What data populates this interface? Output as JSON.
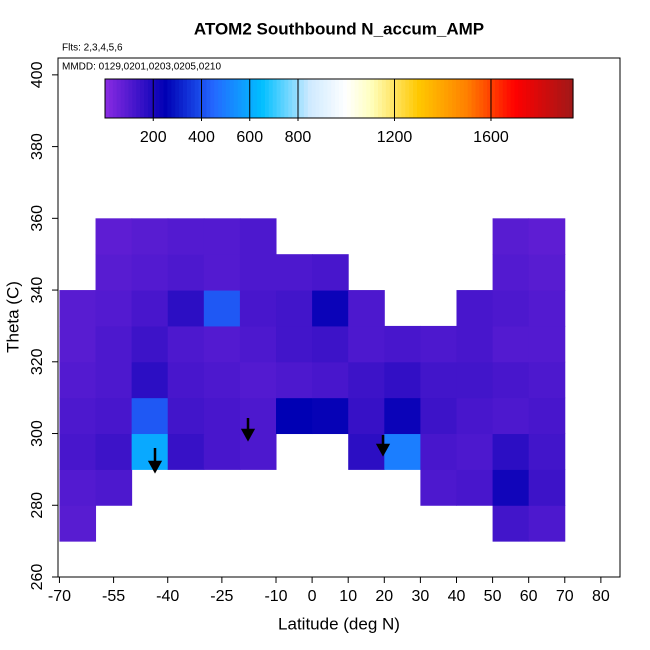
{
  "chart_data": {
    "type": "heatmap",
    "title": "ATOM2 Southbound N_accum_AMP",
    "annotations": [
      "Flts: 2,3,4,5,6",
      "MMDD: 0129,0201,0203,0205,0210"
    ],
    "xlabel": "Latitude (deg N)",
    "ylabel": "Theta (C)",
    "xlim": [
      -70.4,
      85.3
    ],
    "xticks": [
      -70,
      -55,
      -40,
      -25,
      -10,
      0,
      10,
      20,
      30,
      40,
      50,
      60,
      70,
      80
    ],
    "ylim": [
      260,
      404.7
    ],
    "yticks": [
      260,
      280,
      300,
      320,
      340,
      360,
      380,
      400
    ],
    "x_edges": [
      -70,
      -60,
      -50,
      -40,
      -30,
      -20,
      -10,
      0,
      10,
      20,
      30,
      40,
      50,
      60,
      70
    ],
    "y_edges": [
      270,
      280,
      290,
      300,
      310,
      320,
      330,
      340,
      350,
      360
    ],
    "z": [
      [
        90,
        null,
        null,
        null,
        null,
        null,
        null,
        null,
        null,
        null,
        null,
        null,
        130,
        110
      ],
      [
        100,
        110,
        null,
        null,
        null,
        null,
        null,
        null,
        null,
        null,
        110,
        120,
        220,
        140
      ],
      [
        120,
        140,
        600,
        150,
        120,
        110,
        null,
        null,
        170,
        500,
        120,
        110,
        170,
        130
      ],
      [
        110,
        120,
        420,
        130,
        120,
        110,
        250,
        240,
        150,
        230,
        140,
        120,
        110,
        120
      ],
      [
        100,
        110,
        170,
        120,
        110,
        100,
        110,
        120,
        140,
        160,
        130,
        130,
        120,
        110
      ],
      [
        90,
        110,
        140,
        110,
        100,
        110,
        130,
        140,
        110,
        120,
        110,
        120,
        100,
        100
      ],
      [
        90,
        100,
        120,
        170,
        420,
        120,
        130,
        230,
        110,
        null,
        null,
        120,
        110,
        100
      ],
      [
        null,
        90,
        100,
        110,
        100,
        110,
        110,
        120,
        null,
        null,
        null,
        null,
        100,
        90
      ],
      [
        null,
        80,
        90,
        100,
        100,
        110,
        null,
        null,
        null,
        null,
        null,
        null,
        90,
        80
      ]
    ],
    "colorbar_ticks": [
      200,
      400,
      600,
      800,
      1200,
      1600
    ],
    "colorbar_lim": [
      0,
      1940
    ],
    "colormap": [
      {
        "value": 0,
        "color": "#8a2be2"
      },
      {
        "value": 250,
        "color": "#0000b4"
      },
      {
        "value": 450,
        "color": "#2468ff"
      },
      {
        "value": 650,
        "color": "#00bfff"
      },
      {
        "value": 850,
        "color": "#cfeaff"
      },
      {
        "value": 1000,
        "color": "#ffffff"
      },
      {
        "value": 1100,
        "color": "#ffffc0"
      },
      {
        "value": 1300,
        "color": "#ffc800"
      },
      {
        "value": 1500,
        "color": "#ff8000"
      },
      {
        "value": 1700,
        "color": "#ff0000"
      },
      {
        "value": 1940,
        "color": "#a01818"
      }
    ]
  }
}
